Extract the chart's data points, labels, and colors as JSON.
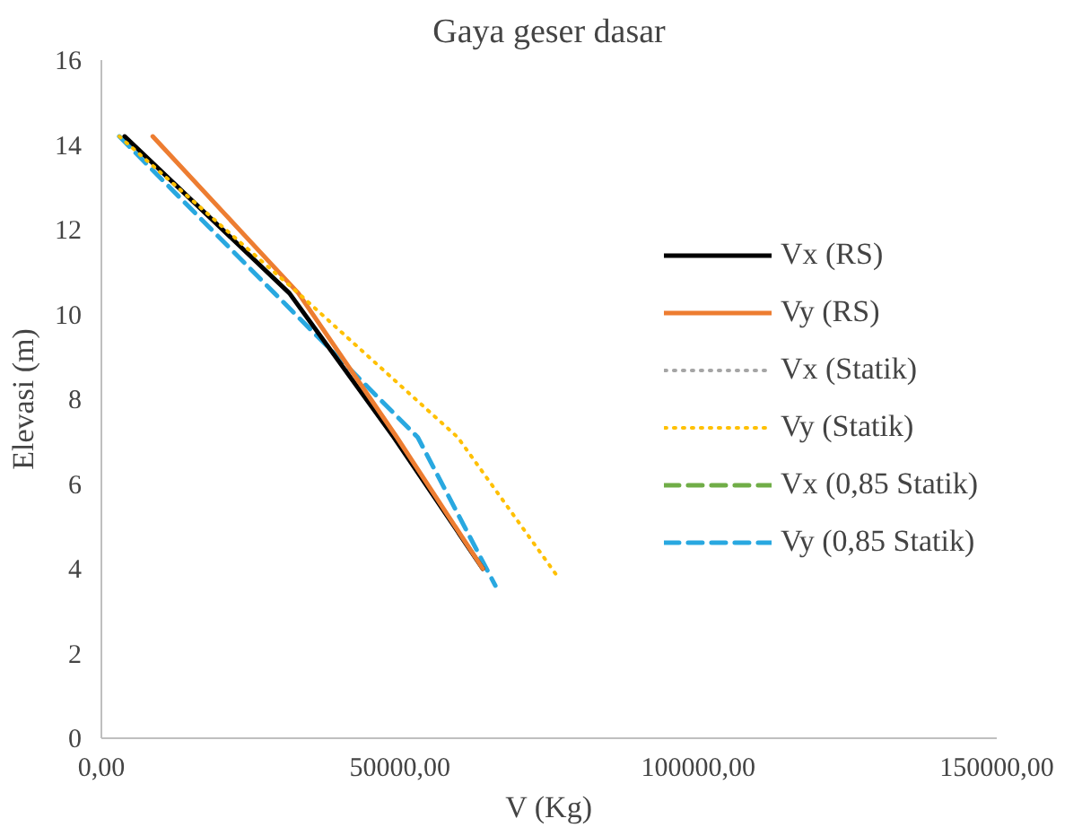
{
  "chart_data": {
    "type": "line",
    "title": "Gaya geser dasar",
    "xlabel": "V (Kg)",
    "ylabel": "Elevasi (m)",
    "xlim": [
      0,
      150000
    ],
    "xticks": [
      {
        "value": 0,
        "label": "0,00"
      },
      {
        "value": 50000,
        "label": "50000,00"
      },
      {
        "value": 100000,
        "label": "100000,00"
      },
      {
        "value": 150000,
        "label": "150000,00"
      }
    ],
    "ylim": [
      0,
      16
    ],
    "yticks": [
      0,
      2,
      4,
      6,
      8,
      10,
      12,
      14,
      16
    ],
    "grid": false,
    "legend": "right",
    "series": [
      {
        "name": "Vx (RS)",
        "color": "#000000",
        "line_style": "solid",
        "x": [
          3900,
          31500,
          49000,
          63900
        ],
        "values": [
          14.2,
          10.5,
          7.1,
          4.0
        ]
      },
      {
        "name": "Vy (RS)",
        "color": "#ed7d31",
        "line_style": "solid",
        "x": [
          8600,
          33000,
          49500,
          63900
        ],
        "values": [
          14.2,
          10.5,
          7.1,
          4.0
        ]
      },
      {
        "name": "Vx (Statik)",
        "color": "#a5a5a5",
        "line_style": "dotted"
      },
      {
        "name": "Vy (Statik)",
        "color": "#ffc000",
        "line_style": "dotted",
        "x": [
          3000,
          33000,
          59700,
          76500
        ],
        "values": [
          14.2,
          10.5,
          7.1,
          3.8
        ]
      },
      {
        "name": "Vx (0,85 Statik)",
        "color": "#70ad47",
        "line_style": "dashed"
      },
      {
        "name": "Vy (0,85 Statik)",
        "color": "#29a8e0",
        "line_style": "dashed",
        "x": [
          3000,
          29000,
          53000,
          66000
        ],
        "values": [
          14.2,
          10.5,
          7.1,
          3.6
        ]
      }
    ]
  }
}
